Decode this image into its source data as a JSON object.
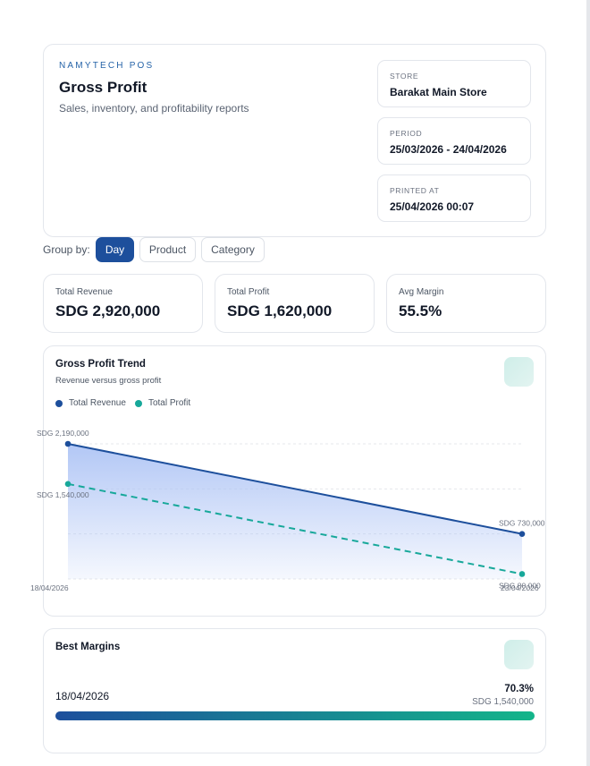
{
  "header": {
    "brand": "NAMYTECH POS",
    "title": "Gross Profit",
    "subtitle": "Sales, inventory, and profitability reports",
    "meta": [
      {
        "label": "STORE",
        "value": "Barakat Main Store"
      },
      {
        "label": "PERIOD",
        "value": "25/03/2026 - 24/04/2026"
      },
      {
        "label": "PRINTED AT",
        "value": "25/04/2026 00:07"
      }
    ]
  },
  "group_by": {
    "label": "Group by:",
    "options": [
      "Day",
      "Product",
      "Category"
    ],
    "selected": "Day"
  },
  "stats": [
    {
      "label": "Total Revenue",
      "value": "SDG 2,920,000"
    },
    {
      "label": "Total Profit",
      "value": "SDG 1,620,000"
    },
    {
      "label": "Avg Margin",
      "value": "55.5%"
    }
  ],
  "trend": {
    "title": "Gross Profit Trend",
    "subtitle": "Revenue versus gross profit",
    "icon": "chart-icon"
  },
  "best_margins": {
    "title": "Best Margins",
    "icon": "chart-icon",
    "rows": [
      {
        "label": "18/04/2026",
        "margin_pct": "70.3%",
        "amount": "SDG 1,540,000",
        "fill": 1.0
      }
    ]
  },
  "colors": {
    "accent": "#1d4f9c",
    "revenue": "#1d4f9c",
    "profit": "#17a89a",
    "area": "#aec4f5"
  },
  "chart_data": {
    "type": "line",
    "x": [
      "18/04/2026",
      "23/04/2026"
    ],
    "series": [
      {
        "name": "Total Revenue",
        "values": [
          2190000,
          730000
        ],
        "color": "#1d4f9c",
        "style": "solid",
        "fill": true
      },
      {
        "name": "Total Profit",
        "values": [
          1540000,
          80000
        ],
        "color": "#17a89a",
        "style": "dashed",
        "fill": false
      }
    ],
    "point_labels": [
      {
        "series": 0,
        "index": 0,
        "text": "SDG 2,190,000"
      },
      {
        "series": 1,
        "index": 0,
        "text": "SDG 1,540,000"
      },
      {
        "series": 0,
        "index": 1,
        "text": "SDG 730,000"
      },
      {
        "series": 1,
        "index": 1,
        "text": "SDG 80,000"
      }
    ],
    "ylim": [
      0,
      2190000
    ],
    "grid": true,
    "legend": "top-left",
    "title": "Gross Profit Trend",
    "xlabel": "",
    "ylabel": ""
  }
}
